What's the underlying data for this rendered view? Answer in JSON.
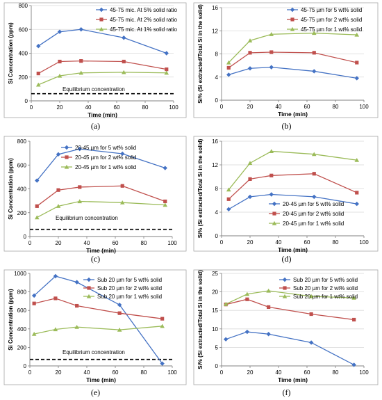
{
  "colors": {
    "blue": "#4472C4",
    "red": "#C0504D",
    "green": "#9BBB59",
    "dash": "#000000",
    "grid": "#D9D9D9",
    "frame": "#A6A6A6"
  },
  "chart_data": [
    {
      "letter": "(a)",
      "type": "line",
      "xlabel": "Time (min)",
      "ylabel": "Si Concentration (ppm)",
      "ylim": [
        0,
        800
      ],
      "yticks": [
        0,
        200,
        400,
        600,
        800
      ],
      "xlim": [
        0,
        100
      ],
      "xticks": [
        0,
        20,
        40,
        60,
        80,
        100
      ],
      "grid": true,
      "legend_position": "top-right",
      "series": [
        {
          "name": "45-75 mic. At 5% solid ratio",
          "color": "blue",
          "marker": "diamond",
          "x": [
            5,
            20,
            35,
            65,
            95
          ],
          "y": [
            460,
            580,
            600,
            530,
            400
          ]
        },
        {
          "name": "45-75 mic. At 2% solid ratio",
          "color": "red",
          "marker": "square",
          "x": [
            5,
            20,
            35,
            65,
            95
          ],
          "y": [
            230,
            330,
            335,
            330,
            265
          ]
        },
        {
          "name": "45-75 mic. At 1% solid ratio",
          "color": "green",
          "marker": "triangle",
          "x": [
            5,
            20,
            35,
            65,
            95
          ],
          "y": [
            135,
            210,
            235,
            240,
            235
          ]
        }
      ],
      "reference_line": {
        "value": 60,
        "label": "Equilibrium concentration"
      }
    },
    {
      "letter": "(b)",
      "type": "line",
      "xlabel": "Time (min)",
      "ylabel": "Si% (Si extracted/Total Si in the solid)",
      "ylim": [
        0,
        16
      ],
      "yticks": [
        0,
        4,
        8,
        12,
        16
      ],
      "xlim": [
        0,
        100
      ],
      "xticks": [
        0,
        20,
        40,
        60,
        80,
        100
      ],
      "grid": true,
      "legend_position": "top-right",
      "series": [
        {
          "name": "45-75 µm for 5 wt% solid",
          "color": "blue",
          "marker": "diamond",
          "x": [
            5,
            20,
            35,
            65,
            95
          ],
          "y": [
            4.4,
            5.5,
            5.7,
            5.0,
            3.8
          ]
        },
        {
          "name": "45-75 µm for 2 wt% solid",
          "color": "red",
          "marker": "square",
          "x": [
            5,
            20,
            35,
            65,
            95
          ],
          "y": [
            5.6,
            8.2,
            8.3,
            8.2,
            6.5
          ]
        },
        {
          "name": "45-75 µm for 1 wt% solid",
          "color": "green",
          "marker": "triangle",
          "x": [
            5,
            20,
            35,
            65,
            95
          ],
          "y": [
            6.5,
            10.3,
            11.4,
            11.6,
            11.3
          ]
        }
      ]
    },
    {
      "letter": "(c)",
      "type": "line",
      "xlabel": "Time (min)",
      "ylabel": "Si Concentration (ppm)",
      "ylim": [
        0,
        800
      ],
      "yticks": [
        0,
        200,
        400,
        600,
        800
      ],
      "xlim": [
        0,
        100
      ],
      "xticks": [
        0,
        20,
        40,
        60,
        80,
        100
      ],
      "grid": false,
      "legend_position": "upper-middle",
      "series": [
        {
          "name": "20-45 µm for 5 wt% solid",
          "color": "blue",
          "marker": "diamond",
          "x": [
            5,
            20,
            35,
            65,
            95
          ],
          "y": [
            470,
            690,
            735,
            695,
            575
          ]
        },
        {
          "name": "20-45 µm for 2 wt% solid",
          "color": "red",
          "marker": "square",
          "x": [
            5,
            20,
            35,
            65,
            95
          ],
          "y": [
            255,
            390,
            415,
            425,
            295
          ]
        },
        {
          "name": "20-45 µm for 1 wt% solid",
          "color": "green",
          "marker": "triangle",
          "x": [
            5,
            20,
            35,
            65,
            95
          ],
          "y": [
            160,
            255,
            295,
            285,
            265
          ]
        }
      ],
      "reference_line": {
        "value": 60,
        "label": "Equilibrium concentration"
      }
    },
    {
      "letter": "(d)",
      "type": "line",
      "xlabel": "Time (min)",
      "ylabel": "Si% (Si extracted/Total Si in the solid)",
      "ylim": [
        0,
        16
      ],
      "yticks": [
        0,
        4,
        8,
        12,
        16
      ],
      "xlim": [
        0,
        100
      ],
      "xticks": [
        0,
        20,
        40,
        60,
        80,
        100
      ],
      "grid": true,
      "legend_position": "bottom-middle",
      "series": [
        {
          "name": "20-45 µm for 5 wt% solid",
          "color": "blue",
          "marker": "diamond",
          "x": [
            5,
            20,
            35,
            65,
            95
          ],
          "y": [
            4.5,
            6.6,
            7.0,
            6.6,
            5.4
          ]
        },
        {
          "name": "20-45 µm for 2 wt% solid",
          "color": "red",
          "marker": "square",
          "x": [
            5,
            20,
            35,
            65,
            95
          ],
          "y": [
            6.2,
            9.6,
            10.2,
            10.5,
            7.3
          ]
        },
        {
          "name": "20-45 µm for 1 wt% solid",
          "color": "green",
          "marker": "triangle",
          "x": [
            5,
            20,
            35,
            65,
            95
          ],
          "y": [
            7.8,
            12.3,
            14.3,
            13.8,
            12.8
          ]
        }
      ]
    },
    {
      "letter": "(e)",
      "type": "line",
      "xlabel": "Time (min)",
      "ylabel": "Si Concentration (ppm)",
      "ylim": [
        0,
        1000
      ],
      "yticks": [
        0,
        200,
        400,
        600,
        800,
        1000
      ],
      "xlim": [
        0,
        100
      ],
      "xticks": [
        0,
        20,
        40,
        60,
        80,
        100
      ],
      "grid": false,
      "legend_position": "top-right",
      "series": [
        {
          "name": "Sub 20 µm for 5 wt% solid",
          "color": "blue",
          "marker": "diamond",
          "x": [
            3,
            18,
            33,
            63,
            93
          ],
          "y": [
            760,
            970,
            905,
            660,
            25
          ]
        },
        {
          "name": "Sub 20 µm for 2 wt% solid",
          "color": "red",
          "marker": "square",
          "x": [
            3,
            18,
            33,
            63,
            93
          ],
          "y": [
            675,
            730,
            650,
            570,
            510
          ]
        },
        {
          "name": "Sub 20 µm for 1 wt% solid",
          "color": "green",
          "marker": "triangle",
          "x": [
            3,
            18,
            33,
            63,
            93
          ],
          "y": [
            345,
            395,
            420,
            390,
            430
          ]
        }
      ],
      "reference_line": {
        "value": 70,
        "label": "Equilibrium concentration"
      }
    },
    {
      "letter": "(f)",
      "type": "line",
      "xlabel": "Time (min)",
      "ylabel": "Si% (Si extracted/Total Si in the solid)",
      "ylim": [
        0,
        25
      ],
      "yticks": [
        0,
        5,
        10,
        15,
        20,
        25
      ],
      "xlim": [
        0,
        100
      ],
      "xticks": [
        0,
        20,
        40,
        60,
        80,
        100
      ],
      "grid": true,
      "legend_position": "top-right",
      "series": [
        {
          "name": "Sub 20 µm for 5 wt% solid",
          "color": "blue",
          "marker": "diamond",
          "x": [
            3,
            18,
            33,
            63,
            93
          ],
          "y": [
            7.2,
            9.2,
            8.6,
            6.3,
            0.3
          ]
        },
        {
          "name": "Sub 20 µm for 2 wt% solid",
          "color": "red",
          "marker": "square",
          "x": [
            3,
            18,
            33,
            63,
            93
          ],
          "y": [
            16.6,
            18.0,
            15.9,
            14.0,
            12.5
          ]
        },
        {
          "name": "Sub 20 µm for 1 wt% solid",
          "color": "green",
          "marker": "triangle",
          "x": [
            3,
            18,
            33,
            63,
            93
          ],
          "y": [
            16.7,
            19.4,
            20.3,
            18.8,
            18.4
          ]
        }
      ]
    }
  ]
}
